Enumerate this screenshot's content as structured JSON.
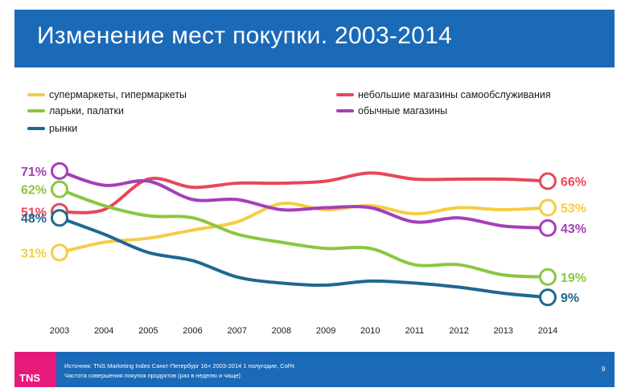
{
  "header": {
    "title": "Изменение мест покупки. 2003-2014"
  },
  "footer": {
    "logo_text": "TNS",
    "source_line": "Источник: TNS Marketing Index Санкт-Петербург 16+ 2003-2014 1 полугодие, Col%",
    "metric_line": "Частота совершения покупок продуктов (раз в неделю и чаще)",
    "page_number": "9"
  },
  "chart_data": {
    "type": "line",
    "title": "Изменение мест покупки. 2003-2014",
    "xlabel": "",
    "ylabel": "",
    "x": [
      "2003",
      "2004",
      "2005",
      "2006",
      "2007",
      "2008",
      "2009",
      "2010",
      "2011",
      "2012",
      "2013",
      "2014"
    ],
    "ylim": [
      0,
      80
    ],
    "grid": false,
    "legend_position": "top",
    "series": [
      {
        "name": "супермаркеты, гипермаркеты",
        "color": "#f5cc45",
        "values": [
          31,
          36,
          38,
          42,
          46,
          55,
          52,
          54,
          50,
          53,
          52,
          53
        ],
        "start_label": "31%",
        "end_label": "53%"
      },
      {
        "name": "небольшие магазины самообслуживания",
        "color": "#e8475a",
        "values": [
          51,
          52,
          67,
          63,
          65,
          65,
          66,
          70,
          67,
          67,
          67,
          66
        ],
        "start_label": "51%",
        "end_label": "66%"
      },
      {
        "name": "ларьки, палатки",
        "color": "#8cc63f",
        "values": [
          62,
          54,
          49,
          48,
          40,
          36,
          33,
          33,
          25,
          25,
          20,
          19
        ],
        "start_label": "62%",
        "end_label": "19%"
      },
      {
        "name": "обычные магазины",
        "color": "#a43fb8",
        "values": [
          71,
          64,
          66,
          57,
          57,
          52,
          53,
          53,
          46,
          48,
          44,
          43
        ],
        "start_label": "71%",
        "end_label": "43%"
      },
      {
        "name": "рынки",
        "color": "#1f6890",
        "values": [
          48,
          40,
          31,
          27,
          19,
          16,
          15,
          17,
          16,
          14,
          11,
          9
        ],
        "start_label": "48%",
        "end_label": "9%"
      }
    ]
  }
}
